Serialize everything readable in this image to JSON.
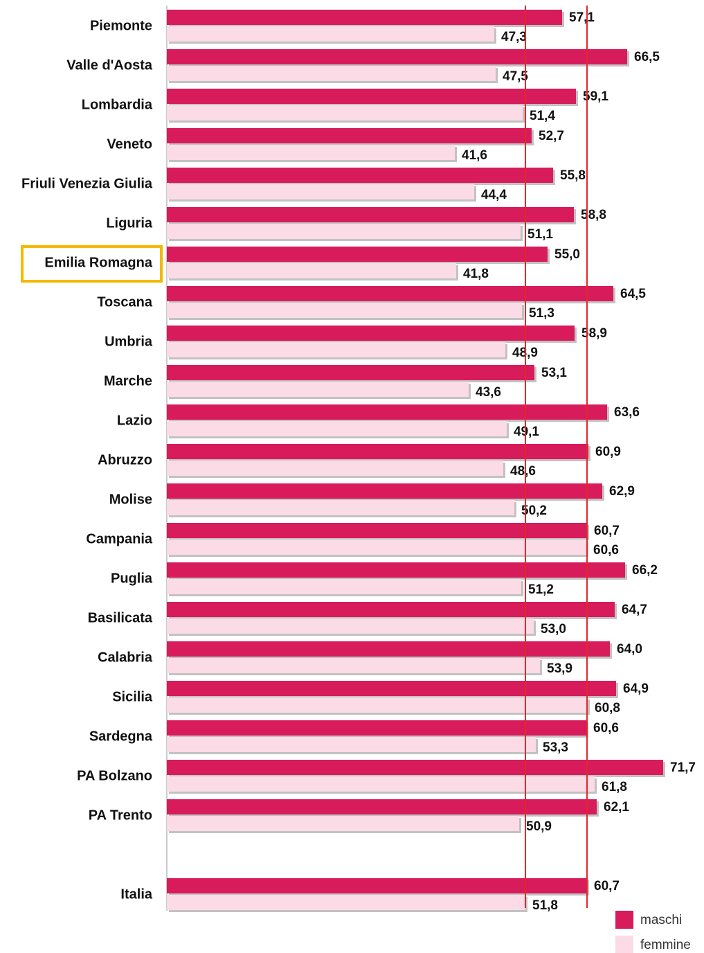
{
  "chart_data": {
    "type": "bar",
    "orientation": "horizontal",
    "categories": [
      "Piemonte",
      "Valle d'Aosta",
      "Lombardia",
      "Veneto",
      "Friuli Venezia Giulia",
      "Liguria",
      "Emilia Romagna",
      "Toscana",
      "Umbria",
      "Marche",
      "Lazio",
      "Abruzzo",
      "Molise",
      "Campania",
      "Puglia",
      "Basilicata",
      "Calabria",
      "Sicilia",
      "Sardegna",
      "PA Bolzano",
      "PA Trento",
      null,
      "Italia"
    ],
    "series": [
      {
        "name": "maschi",
        "color": "#d81b5a",
        "values": [
          57.1,
          66.5,
          59.1,
          52.7,
          55.8,
          58.8,
          55.0,
          64.5,
          58.9,
          53.1,
          63.6,
          60.9,
          62.9,
          60.7,
          66.2,
          64.7,
          64.0,
          64.9,
          60.6,
          71.7,
          62.1,
          null,
          60.7
        ],
        "value_labels": [
          "57,1",
          "66,5",
          "59,1",
          "52,7",
          "55,8",
          "58,8",
          "55,0",
          "64,5",
          "58,9",
          "53,1",
          "63,6",
          "60,9",
          "62,9",
          "60,7",
          "66,2",
          "64,7",
          "64,0",
          "64,9",
          "60,6",
          "71,7",
          "62,1",
          null,
          "60,7"
        ]
      },
      {
        "name": "femmine",
        "color": "#fadbe6",
        "values": [
          47.3,
          47.5,
          51.4,
          41.6,
          44.4,
          51.1,
          41.8,
          51.3,
          48.9,
          43.6,
          49.1,
          48.6,
          50.2,
          60.6,
          51.2,
          53.0,
          53.9,
          60.8,
          53.3,
          61.8,
          50.9,
          null,
          51.8
        ],
        "value_labels": [
          "47,3",
          "47,5",
          "51,4",
          "41,6",
          "44,4",
          "51,1",
          "41,8",
          "51,3",
          "48,9",
          "43,6",
          "49,1",
          "48,6",
          "50,2",
          "60,6",
          "51,2",
          "53,0",
          "53,9",
          "60,8",
          "53,3",
          "61,8",
          "50,9",
          null,
          "51,8"
        ]
      }
    ],
    "xlim": [
      0,
      77.6
    ],
    "reference_line_color": "#e0282e"
  }
}
